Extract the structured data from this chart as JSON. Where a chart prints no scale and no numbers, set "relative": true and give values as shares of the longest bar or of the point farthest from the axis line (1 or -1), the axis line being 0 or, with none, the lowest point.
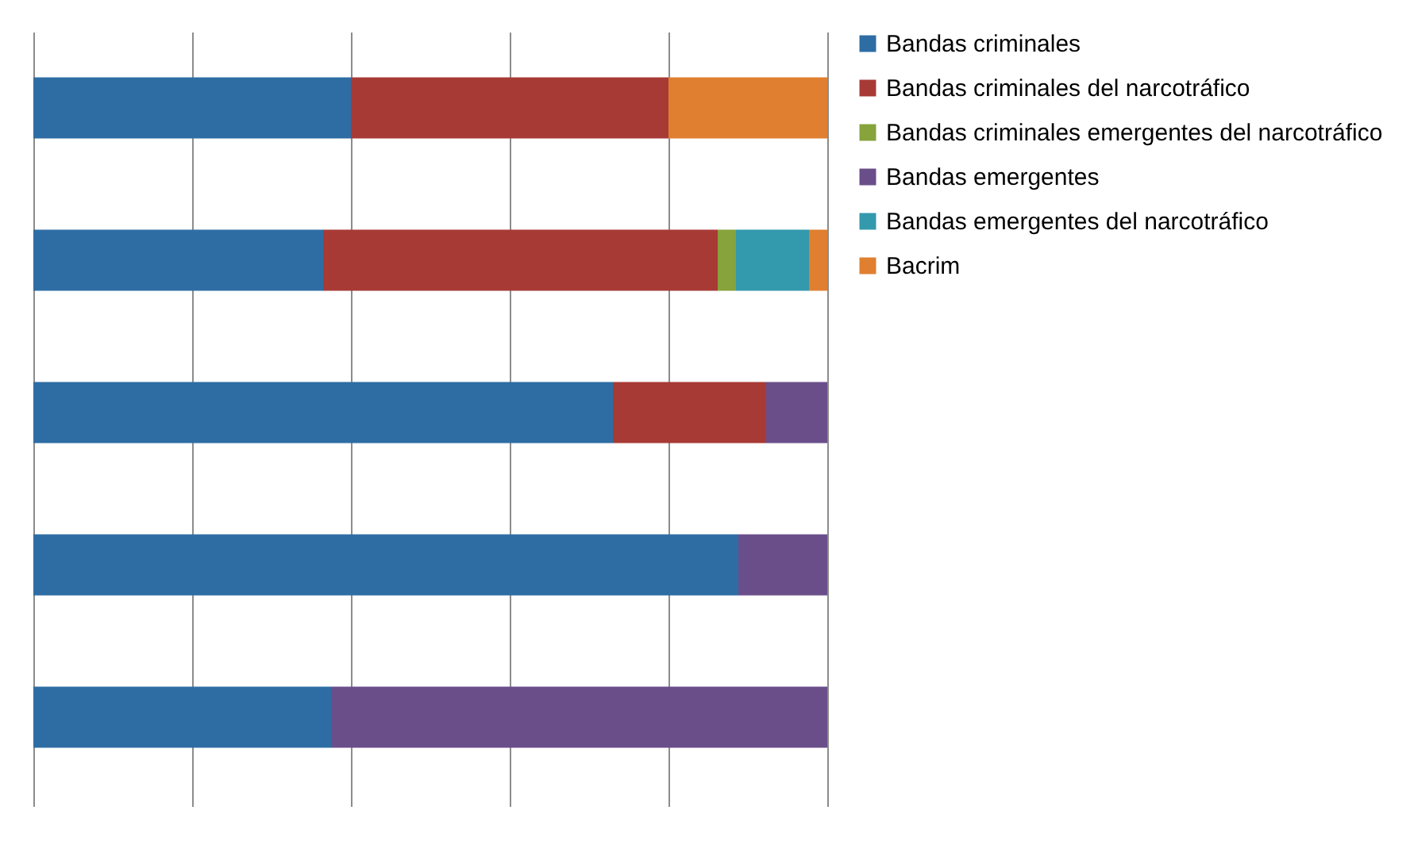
{
  "chart_data": {
    "type": "bar",
    "orientation": "horizontal",
    "stacked": true,
    "relative": true,
    "grid": "x",
    "legend": "right",
    "categories": [
      null,
      null,
      null,
      null,
      null
    ],
    "series": [
      {
        "name": "Bandas criminales",
        "color": "#2e6da4",
        "values": [
          0.4,
          0.365,
          0.73,
          0.888,
          0.375
        ]
      },
      {
        "name": "Bandas criminales del narcotráfico",
        "color": "#a83a36",
        "values": [
          0.4,
          0.497,
          0.193,
          null,
          null
        ]
      },
      {
        "name": "Bandas criminales emergentes del narcotráfico",
        "color": "#86a33c",
        "values": [
          null,
          0.023,
          null,
          null,
          null
        ]
      },
      {
        "name": "Bandas emergentes",
        "color": "#6a4e8a",
        "values": [
          null,
          null,
          0.077,
          0.112,
          0.625
        ]
      },
      {
        "name": "Bandas emergentes del narcotráfico",
        "color": "#3399ad",
        "values": [
          null,
          0.092,
          null,
          null,
          null
        ]
      },
      {
        "name": "Bacrim",
        "color": "#e07f30",
        "values": [
          0.2,
          0.023,
          null,
          null,
          null
        ]
      }
    ]
  }
}
